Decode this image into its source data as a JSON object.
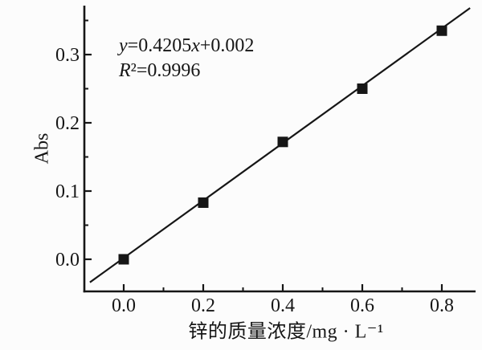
{
  "chart_data": {
    "type": "scatter",
    "title": "",
    "xlabel": "锌的质量浓度/mg · L⁻¹",
    "ylabel": "Abs",
    "points": [
      {
        "x": 0.0,
        "y": 0.0
      },
      {
        "x": 0.2,
        "y": 0.083
      },
      {
        "x": 0.4,
        "y": 0.172
      },
      {
        "x": 0.6,
        "y": 0.25
      },
      {
        "x": 0.8,
        "y": 0.335
      }
    ],
    "fit": {
      "equation": "y=0.4205x+0.002",
      "slope": 0.4205,
      "intercept": 0.002,
      "r_squared_label": "R²=0.9996",
      "r_squared": 0.9996,
      "line_x_range": [
        -0.085,
        0.871
      ]
    },
    "x_tick_values": [
      0.0,
      0.2,
      0.4,
      0.6,
      0.8
    ],
    "x_tick_labels": [
      "0.0",
      "0.2",
      "0.4",
      "0.6",
      "0.8"
    ],
    "x_minor_ticks": [
      0.1,
      0.3,
      0.5,
      0.7
    ],
    "y_tick_values": [
      0.0,
      0.1,
      0.2,
      0.3
    ],
    "y_tick_labels": [
      "0.0",
      "0.1",
      "0.2",
      "0.3"
    ],
    "y_minor_ticks": [
      0.05,
      0.15,
      0.25,
      0.35
    ],
    "xlim": [
      -0.1,
      0.885
    ],
    "ylim": [
      -0.047,
      0.372
    ],
    "grid": false,
    "legend": "none",
    "marker": "filled-square",
    "colors": {
      "axis": "#161616",
      "line": "#161616",
      "marker": "#161616",
      "text": "#161616",
      "background": "#fcfcfc"
    }
  }
}
